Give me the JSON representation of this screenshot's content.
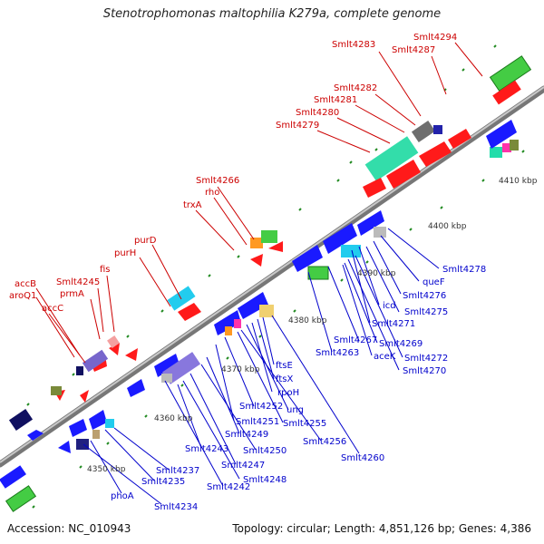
{
  "title": "Stenotrophomonas maltophilia K279a, complete genome",
  "footer": {
    "accession": "Accession: NC_010943",
    "summary": "Topology: circular; Length: 4,851,126 bp; Genes: 4,386"
  },
  "kbp_labels": [
    "4350 kbp",
    "4360 kbp",
    "4370 kbp",
    "4380 kbp",
    "4390 kbp",
    "4400 kbp",
    "4410 kbp"
  ],
  "colors": {
    "backbone": "#8a8a8a",
    "plus_strand_label": "#cc0000",
    "minus_strand_label": "#0000cc",
    "red_feature": "#ff1a1a",
    "blue_feature": "#1a1aff",
    "green_box": "#44cc44",
    "cyan_box": "#22ccee",
    "purple_box": "#8877dd",
    "navy_box": "#101060",
    "tick_green": "#228b22"
  },
  "top_labels": [
    "Smlt4294",
    "Smlt4287",
    "Smlt4283",
    "Smlt4282",
    "Smlt4281",
    "Smlt4280",
    "Smlt4279",
    "Smlt4266",
    "rho",
    "trxA",
    "purD",
    "purH",
    "fis",
    "Smlt4245",
    "prmA",
    "accB",
    "aroQ1",
    "accC"
  ],
  "bottom_labels": [
    "Smlt4278",
    "queF",
    "Smlt4276",
    "Smlt4275",
    "icd",
    "Smlt4271",
    "Smlt4269",
    "Smlt4272",
    "Smlt4270",
    "aceK",
    "Smlt4267",
    "Smlt4263",
    "ftsE",
    "ftsX",
    "rpoH",
    "ung",
    "Smlt4256",
    "Smlt4260",
    "Smlt4255",
    "Smlt4252",
    "Smlt4251",
    "Smlt4249",
    "Smlt4250",
    "Smlt4247",
    "Smlt4248",
    "Smlt4243",
    "Smlt4242",
    "Smlt4237",
    "Smlt4235",
    "phoA",
    "Smlt4234"
  ]
}
